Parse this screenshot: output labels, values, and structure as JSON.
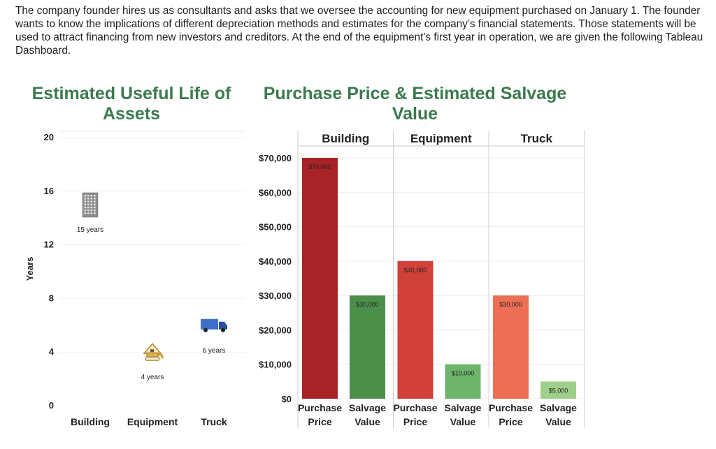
{
  "intro": "The company founder hires us as consultants and asks that we oversee the accounting for new equipment purchased on January 1. The founder wants to know the implications of different depreciation methods and estimates for the company’s financial statements. Those statements will be used to attract financing from new investors and creditors. At the end of the equipment’s first year in operation, we are given the following Tableau Dashboard.",
  "chart_data": [
    {
      "type": "scatter",
      "title": "Estimated Useful Life of Assets",
      "ylabel": "Years",
      "xlabel": "",
      "ylim": [
        0,
        20
      ],
      "yticks": [
        "0",
        "4",
        "8",
        "12",
        "16",
        "20"
      ],
      "categories": [
        "Building",
        "Equipment",
        "Truck"
      ],
      "values": [
        15,
        4,
        6
      ],
      "data_labels": [
        "15 years",
        "4 years",
        "6 years"
      ],
      "markers": [
        "building-icon",
        "excavator-icon",
        "truck-icon"
      ]
    },
    {
      "type": "bar",
      "title": "Purchase Price & Estimated Salvage Value",
      "ylim": [
        0,
        70000
      ],
      "yticks": [
        "$0",
        "$10,000",
        "$20,000",
        "$30,000",
        "$40,000",
        "$50,000",
        "$60,000",
        "$70,000"
      ],
      "panels": [
        {
          "name": "Building",
          "bars": [
            {
              "label_top": "Purchase",
              "label_bottom": "Price",
              "value": 70000,
              "value_label": "$70,000",
              "color": "#a82328"
            },
            {
              "label_top": "Salvage",
              "label_bottom": "Value",
              "value": 30000,
              "value_label": "$30,000",
              "color": "#4c8f4a"
            }
          ]
        },
        {
          "name": "Equipment",
          "bars": [
            {
              "label_top": "Purchase",
              "label_bottom": "Price",
              "value": 40000,
              "value_label": "$40,000",
              "color": "#d2403a"
            },
            {
              "label_top": "Salvage",
              "label_bottom": "Value",
              "value": 10000,
              "value_label": "$10,000",
              "color": "#6cb56a"
            }
          ]
        },
        {
          "name": "Truck",
          "bars": [
            {
              "label_top": "Purchase",
              "label_bottom": "Price",
              "value": 30000,
              "value_label": "$30,000",
              "color": "#ee6e55"
            },
            {
              "label_top": "Salvage",
              "label_bottom": "Value",
              "value": 5000,
              "value_label": "$5,000",
              "color": "#9ed08a"
            }
          ]
        }
      ]
    }
  ]
}
